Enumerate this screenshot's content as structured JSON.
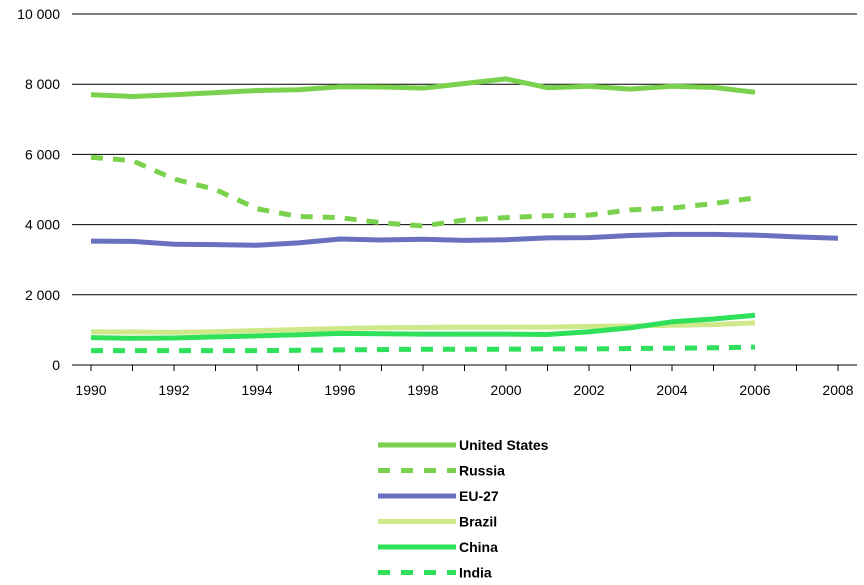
{
  "chart_data": {
    "type": "line",
    "title": "",
    "xlabel": "",
    "ylabel": "",
    "xlim": [
      1990,
      2008
    ],
    "ylim": [
      0,
      10000
    ],
    "x_ticks": [
      1990,
      1992,
      1994,
      1996,
      1998,
      2000,
      2002,
      2004,
      2006,
      2008
    ],
    "x_tick_labels": [
      "1990",
      "1992",
      "1994",
      "1996",
      "1998",
      "2000",
      "2002",
      "2004",
      "2006",
      "2008"
    ],
    "y_ticks": [
      0,
      2000,
      4000,
      6000,
      8000,
      10000
    ],
    "y_tick_labels": [
      "0",
      "2 000",
      "4 000",
      "6 000",
      "8 000",
      "10 000"
    ],
    "grid": "horizontal",
    "legend_position": "bottom-center",
    "series": [
      {
        "name": "United States",
        "color": "#7ad14d",
        "dash": "solid",
        "x": [
          1990,
          1991,
          1992,
          1993,
          1994,
          1995,
          1996,
          1997,
          1998,
          1999,
          2000,
          2001,
          2002,
          2003,
          2004,
          2005,
          2006
        ],
        "values": [
          7700,
          7650,
          7700,
          7760,
          7820,
          7840,
          7930,
          7920,
          7890,
          8020,
          8150,
          7900,
          7940,
          7860,
          7940,
          7910,
          7770
        ]
      },
      {
        "name": "Russia",
        "color": "#7ad14d",
        "dash": "dashed",
        "x": [
          1990,
          1991,
          1992,
          1993,
          1994,
          1995,
          1996,
          1997,
          1998,
          1999,
          2000,
          2001,
          2002,
          2003,
          2004,
          2005,
          2006
        ],
        "values": [
          5920,
          5820,
          5300,
          5000,
          4450,
          4230,
          4200,
          4050,
          3960,
          4130,
          4200,
          4250,
          4270,
          4420,
          4470,
          4600,
          4760
        ]
      },
      {
        "name": "EU-27",
        "color": "#6a70c0",
        "dash": "solid",
        "x": [
          1990,
          1991,
          1992,
          1993,
          1994,
          1995,
          1996,
          1997,
          1998,
          1999,
          2000,
          2001,
          2002,
          2003,
          2004,
          2005,
          2006,
          2007,
          2008
        ],
        "values": [
          3530,
          3520,
          3440,
          3430,
          3410,
          3480,
          3590,
          3560,
          3580,
          3550,
          3570,
          3620,
          3630,
          3690,
          3720,
          3720,
          3700,
          3650,
          3610
        ]
      },
      {
        "name": "Brazil",
        "color": "#cfe98a",
        "dash": "solid",
        "x": [
          1990,
          1991,
          1992,
          1993,
          1994,
          1995,
          1996,
          1997,
          1998,
          1999,
          2000,
          2001,
          2002,
          2003,
          2004,
          2005,
          2006
        ],
        "values": [
          950,
          940,
          930,
          950,
          980,
          1010,
          1040,
          1060,
          1070,
          1080,
          1080,
          1080,
          1100,
          1110,
          1130,
          1150,
          1200
        ]
      },
      {
        "name": "China",
        "color": "#2ee05a",
        "dash": "solid",
        "x": [
          1990,
          1991,
          1992,
          1993,
          1994,
          1995,
          1996,
          1997,
          1998,
          1999,
          2000,
          2001,
          2002,
          2003,
          2004,
          2005,
          2006
        ],
        "values": [
          780,
          760,
          770,
          800,
          830,
          860,
          900,
          890,
          880,
          880,
          880,
          870,
          950,
          1060,
          1230,
          1310,
          1420
        ]
      },
      {
        "name": "India",
        "color": "#2ee05a",
        "dash": "dashed",
        "x": [
          1990,
          1991,
          1992,
          1993,
          1994,
          1995,
          1996,
          1997,
          1998,
          1999,
          2000,
          2001,
          2002,
          2003,
          2004,
          2005,
          2006
        ],
        "values": [
          410,
          410,
          410,
          410,
          410,
          420,
          430,
          440,
          450,
          450,
          450,
          460,
          460,
          470,
          480,
          490,
          510
        ]
      }
    ]
  }
}
